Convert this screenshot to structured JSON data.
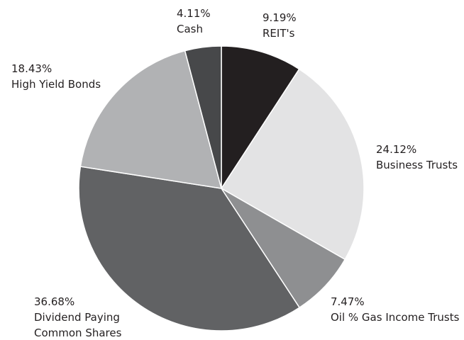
{
  "chart_data": {
    "type": "pie",
    "title": "",
    "slices": [
      {
        "label_lines": [
          "REIT's"
        ],
        "pct_text": "9.19%",
        "value": 9.19,
        "color": "#231f20"
      },
      {
        "label_lines": [
          "Business Trusts"
        ],
        "pct_text": "24.12%",
        "value": 24.12,
        "color": "#e3e3e4"
      },
      {
        "label_lines": [
          "Oil % Gas Income Trusts"
        ],
        "pct_text": "7.47%",
        "value": 7.47,
        "color": "#8e8f91"
      },
      {
        "label_lines": [
          "Dividend Paying",
          "Common Shares"
        ],
        "pct_text": "36.68%",
        "value": 36.68,
        "color": "#616264"
      },
      {
        "label_lines": [
          "High Yield Bonds"
        ],
        "pct_text": "18.43%",
        "value": 18.43,
        "color": "#b1b2b4"
      },
      {
        "label_lines": [
          "Cash"
        ],
        "pct_text": "4.11%",
        "value": 4.11,
        "color": "#47484a"
      }
    ]
  }
}
